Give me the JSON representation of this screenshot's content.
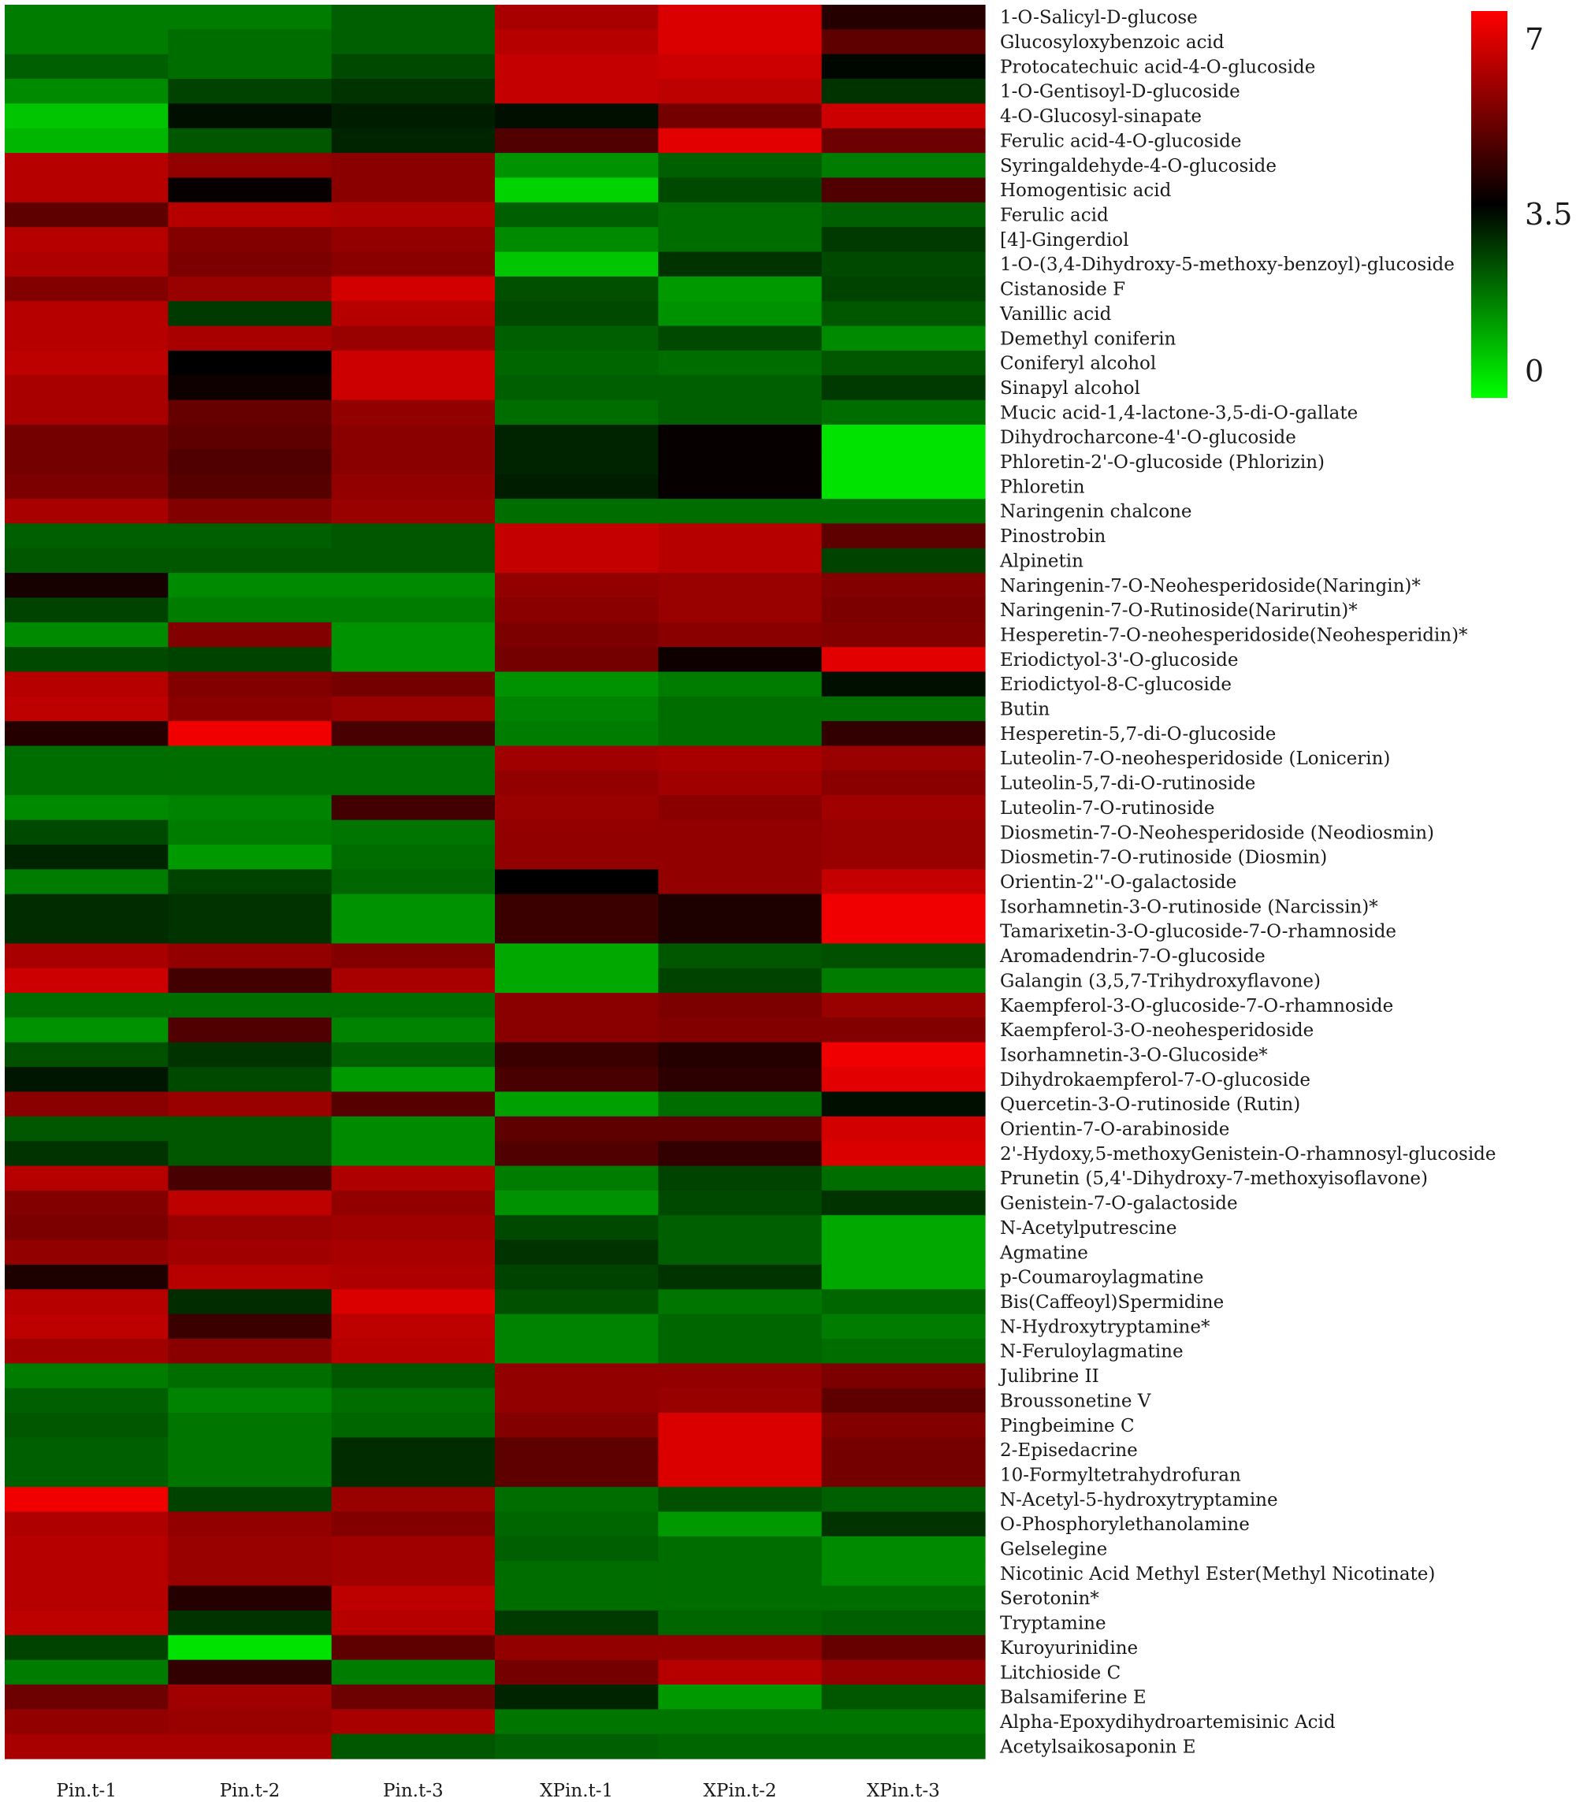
{
  "chart_data": {
    "type": "heatmap",
    "columns": [
      "Pin.t-1",
      "Pin.t-2",
      "Pin.t-3",
      "XPin.t-1",
      "XPin.t-2",
      "XPin.t-3"
    ],
    "rows": [
      "1-O-Salicyl-D-glucose",
      "Glucosyloxybenzoic acid",
      "Protocatechuic acid-4-O-glucoside",
      "1-O-Gentisoyl-D-glucoside",
      "4-O-Glucosyl-sinapate",
      "Ferulic acid-4-O-glucoside",
      "Syringaldehyde-4-O-glucoside",
      "Homogentisic acid",
      "Ferulic acid",
      "[4]-Gingerdiol",
      "1-O-(3,4-Dihydroxy-5-methoxy-benzoyl)-glucoside",
      "Cistanoside F",
      "Vanillic acid",
      "Demethyl coniferin",
      "Coniferyl alcohol",
      "Sinapyl alcohol",
      "Mucic acid-1,4-lactone-3,5-di-O-gallate",
      "Dihydrocharcone-4'-O-glucoside",
      "Phloretin-2'-O-glucoside (Phlorizin)",
      "Phloretin",
      "Naringenin chalcone",
      "Pinostrobin",
      "Alpinetin",
      "Naringenin-7-O-Neohesperidoside(Naringin)*",
      "Naringenin-7-O-Rutinoside(Narirutin)*",
      "Hesperetin-7-O-neohesperidoside(Neohesperidin)*",
      "Eriodictyol-3'-O-glucoside",
      "Eriodictyol-8-C-glucoside",
      "Butin",
      "Hesperetin-5,7-di-O-glucoside",
      "Luteolin-7-O-neohesperidoside (Lonicerin)",
      "Luteolin-5,7-di-O-rutinoside",
      "Luteolin-7-O-rutinoside",
      "Diosmetin-7-O-Neohesperidoside (Neodiosmin)",
      "Diosmetin-7-O-rutinoside (Diosmin)",
      "Orientin-2''-O-galactoside",
      "Isorhamnetin-3-O-rutinoside (Narcissin)*",
      "Tamarixetin-3-O-glucoside-7-O-rhamnoside",
      "Aromadendrin-7-O-glucoside",
      "Galangin (3,5,7-Trihydroxyflavone)",
      "Kaempferol-3-O-glucoside-7-O-rhamnoside",
      "Kaempferol-3-O-neohesperidoside",
      "Isorhamnetin-3-O-Glucoside*",
      "Dihydrokaempferol-7-O-glucoside",
      "Quercetin-3-O-rutinoside (Rutin)",
      "Orientin-7-O-arabinoside",
      "2'-Hydoxy,5-methoxyGenistein-O-rhamnosyl-glucoside",
      "Prunetin (5,4'-Dihydroxy-7-methoxyisoflavone)",
      "Genistein-7-O-galactoside",
      "N-Acetylputrescine",
      "Agmatine",
      "p-Coumaroylagmatine",
      "Bis(Caffeoyl)Spermidine",
      "N-Hydroxytryptamine*",
      "N-Feruloylagmatine",
      "Julibrine II",
      "Broussonetine V",
      "Pingbeimine C",
      "2-Episedacrine",
      "10-Formyltetrahydrofuran",
      "N-Acetyl-5-hydroxytryptamine",
      "O-Phosphorylethanolamine",
      "Gelselegine",
      "Nicotinic Acid Methyl Ester(Methyl Nicotinate)",
      "Serotonin*",
      "Tryptamine",
      "Kuroyurinidine",
      "Litchioside C",
      "Balsamiferine E",
      "Alpha-Epoxydihydroartemisinic Acid",
      "Acetylsaikosaponin E"
    ],
    "values": [
      [
        1.8,
        1.8,
        2.2,
        5.8,
        6.5,
        4.0
      ],
      [
        1.8,
        2.0,
        2.2,
        6.0,
        6.5,
        4.8
      ],
      [
        2.2,
        2.0,
        2.5,
        6.2,
        6.3,
        3.4
      ],
      [
        1.6,
        2.6,
        2.8,
        6.2,
        6.1,
        2.8
      ],
      [
        0.8,
        3.3,
        3.1,
        3.3,
        5.1,
        6.3
      ],
      [
        1.0,
        2.3,
        3.0,
        4.6,
        6.6,
        5.0
      ],
      [
        6.0,
        5.5,
        5.4,
        1.5,
        2.2,
        1.8
      ],
      [
        6.0,
        3.6,
        5.4,
        0.6,
        2.5,
        4.6
      ],
      [
        4.8,
        6.0,
        5.9,
        2.2,
        2.0,
        2.2
      ],
      [
        6.0,
        5.3,
        5.5,
        1.6,
        2.0,
        2.7
      ],
      [
        5.9,
        5.2,
        5.4,
        0.8,
        2.8,
        2.5
      ],
      [
        5.3,
        5.6,
        6.4,
        2.4,
        1.4,
        2.6
      ],
      [
        6.0,
        2.7,
        6.0,
        2.5,
        1.5,
        2.3
      ],
      [
        6.0,
        5.8,
        5.6,
        2.2,
        2.5,
        1.6
      ],
      [
        6.1,
        3.5,
        6.3,
        2.1,
        2.0,
        2.3
      ],
      [
        5.8,
        3.7,
        6.3,
        2.2,
        2.2,
        2.7
      ],
      [
        5.8,
        4.9,
        5.5,
        2.0,
        2.2,
        2.0
      ],
      [
        5.1,
        4.8,
        5.4,
        3.0,
        3.6,
        0.4
      ],
      [
        5.1,
        4.6,
        5.4,
        3.0,
        3.6,
        0.4
      ],
      [
        5.2,
        4.7,
        5.5,
        3.1,
        3.6,
        0.4
      ],
      [
        5.8,
        5.3,
        5.6,
        2.0,
        2.0,
        2.0
      ],
      [
        2.2,
        2.2,
        2.3,
        6.2,
        6.0,
        4.8
      ],
      [
        2.3,
        2.3,
        2.3,
        6.2,
        6.0,
        2.6
      ],
      [
        3.8,
        1.6,
        1.6,
        5.5,
        5.6,
        5.3
      ],
      [
        2.6,
        1.8,
        1.8,
        5.4,
        5.6,
        5.2
      ],
      [
        1.6,
        5.3,
        1.5,
        5.2,
        5.4,
        5.3
      ],
      [
        2.5,
        2.6,
        1.5,
        5.1,
        3.7,
        6.6
      ],
      [
        6.0,
        5.3,
        5.1,
        1.5,
        1.8,
        3.3
      ],
      [
        6.1,
        5.4,
        5.6,
        1.7,
        2.0,
        2.0
      ],
      [
        4.0,
        6.8,
        4.5,
        1.8,
        2.0,
        4.2
      ],
      [
        2.0,
        2.0,
        2.0,
        5.7,
        5.8,
        5.6
      ],
      [
        2.0,
        2.0,
        2.0,
        5.5,
        5.7,
        5.4
      ],
      [
        1.6,
        1.7,
        4.4,
        5.6,
        5.4,
        5.7
      ],
      [
        2.5,
        1.8,
        1.9,
        5.5,
        5.5,
        5.6
      ],
      [
        3.0,
        1.4,
        2.0,
        5.5,
        5.5,
        5.6
      ],
      [
        1.8,
        2.6,
        2.1,
        3.5,
        5.5,
        6.2
      ],
      [
        2.9,
        2.8,
        1.5,
        4.3,
        3.9,
        6.8
      ],
      [
        2.9,
        2.8,
        1.5,
        4.3,
        3.9,
        6.8
      ],
      [
        5.8,
        5.5,
        5.3,
        1.2,
        2.3,
        2.4
      ],
      [
        6.3,
        4.4,
        5.8,
        1.2,
        2.6,
        1.8
      ],
      [
        2.0,
        2.0,
        2.0,
        5.4,
        5.2,
        5.6
      ],
      [
        1.5,
        4.6,
        1.7,
        5.4,
        5.3,
        5.3
      ],
      [
        2.4,
        2.8,
        2.2,
        4.3,
        4.0,
        6.8
      ],
      [
        3.2,
        2.5,
        1.4,
        4.5,
        4.1,
        6.6
      ],
      [
        5.4,
        5.6,
        4.7,
        1.3,
        2.0,
        3.3
      ],
      [
        2.3,
        2.3,
        1.6,
        4.8,
        4.8,
        6.4
      ],
      [
        2.8,
        2.3,
        1.6,
        4.6,
        4.2,
        6.5
      ],
      [
        6.0,
        4.5,
        5.9,
        1.8,
        2.6,
        2.0
      ],
      [
        5.3,
        6.1,
        5.5,
        1.5,
        2.5,
        2.8
      ],
      [
        5.2,
        5.6,
        5.7,
        2.5,
        2.2,
        1.2
      ],
      [
        5.5,
        5.7,
        5.8,
        2.8,
        2.2,
        1.2
      ],
      [
        3.9,
        6.0,
        5.9,
        2.6,
        2.8,
        1.2
      ],
      [
        6.0,
        2.9,
        6.5,
        2.4,
        1.9,
        2.1
      ],
      [
        6.1,
        4.3,
        6.1,
        1.7,
        2.1,
        1.8
      ],
      [
        5.7,
        5.4,
        6.0,
        1.7,
        2.1,
        2.0
      ],
      [
        1.8,
        2.0,
        2.3,
        5.5,
        5.5,
        5.2
      ],
      [
        2.2,
        1.7,
        2.0,
        5.5,
        5.6,
        4.8
      ],
      [
        2.3,
        1.9,
        2.1,
        5.3,
        6.5,
        5.3
      ],
      [
        2.2,
        1.9,
        2.9,
        4.8,
        6.5,
        5.1
      ],
      [
        2.2,
        1.9,
        2.9,
        4.8,
        6.5,
        5.1
      ],
      [
        6.8,
        2.6,
        5.6,
        2.0,
        2.4,
        2.2
      ],
      [
        5.9,
        5.5,
        5.3,
        2.1,
        1.4,
        2.8
      ],
      [
        6.0,
        5.6,
        5.7,
        2.2,
        2.0,
        1.6
      ],
      [
        6.0,
        5.6,
        5.7,
        2.0,
        2.0,
        1.6
      ],
      [
        6.0,
        4.0,
        6.1,
        2.0,
        2.0,
        2.0
      ],
      [
        6.1,
        2.8,
        6.0,
        2.7,
        2.1,
        2.2
      ],
      [
        2.6,
        0.4,
        4.8,
        5.5,
        5.5,
        4.9
      ],
      [
        1.8,
        4.2,
        1.8,
        5.1,
        6.0,
        5.5
      ],
      [
        5.0,
        5.7,
        5.0,
        3.0,
        1.4,
        2.3
      ],
      [
        5.5,
        5.6,
        5.8,
        1.9,
        1.9,
        1.9
      ],
      [
        5.8,
        5.8,
        2.3,
        2.2,
        2.1,
        2.1
      ]
    ],
    "colorbar": {
      "min": 0,
      "mid": 3.5,
      "max": 7,
      "tick_labels": [
        "7",
        "3.5",
        "0"
      ]
    },
    "colors": {
      "low": "#00ff00",
      "mid": "#000000",
      "high": "#ff0000"
    }
  }
}
